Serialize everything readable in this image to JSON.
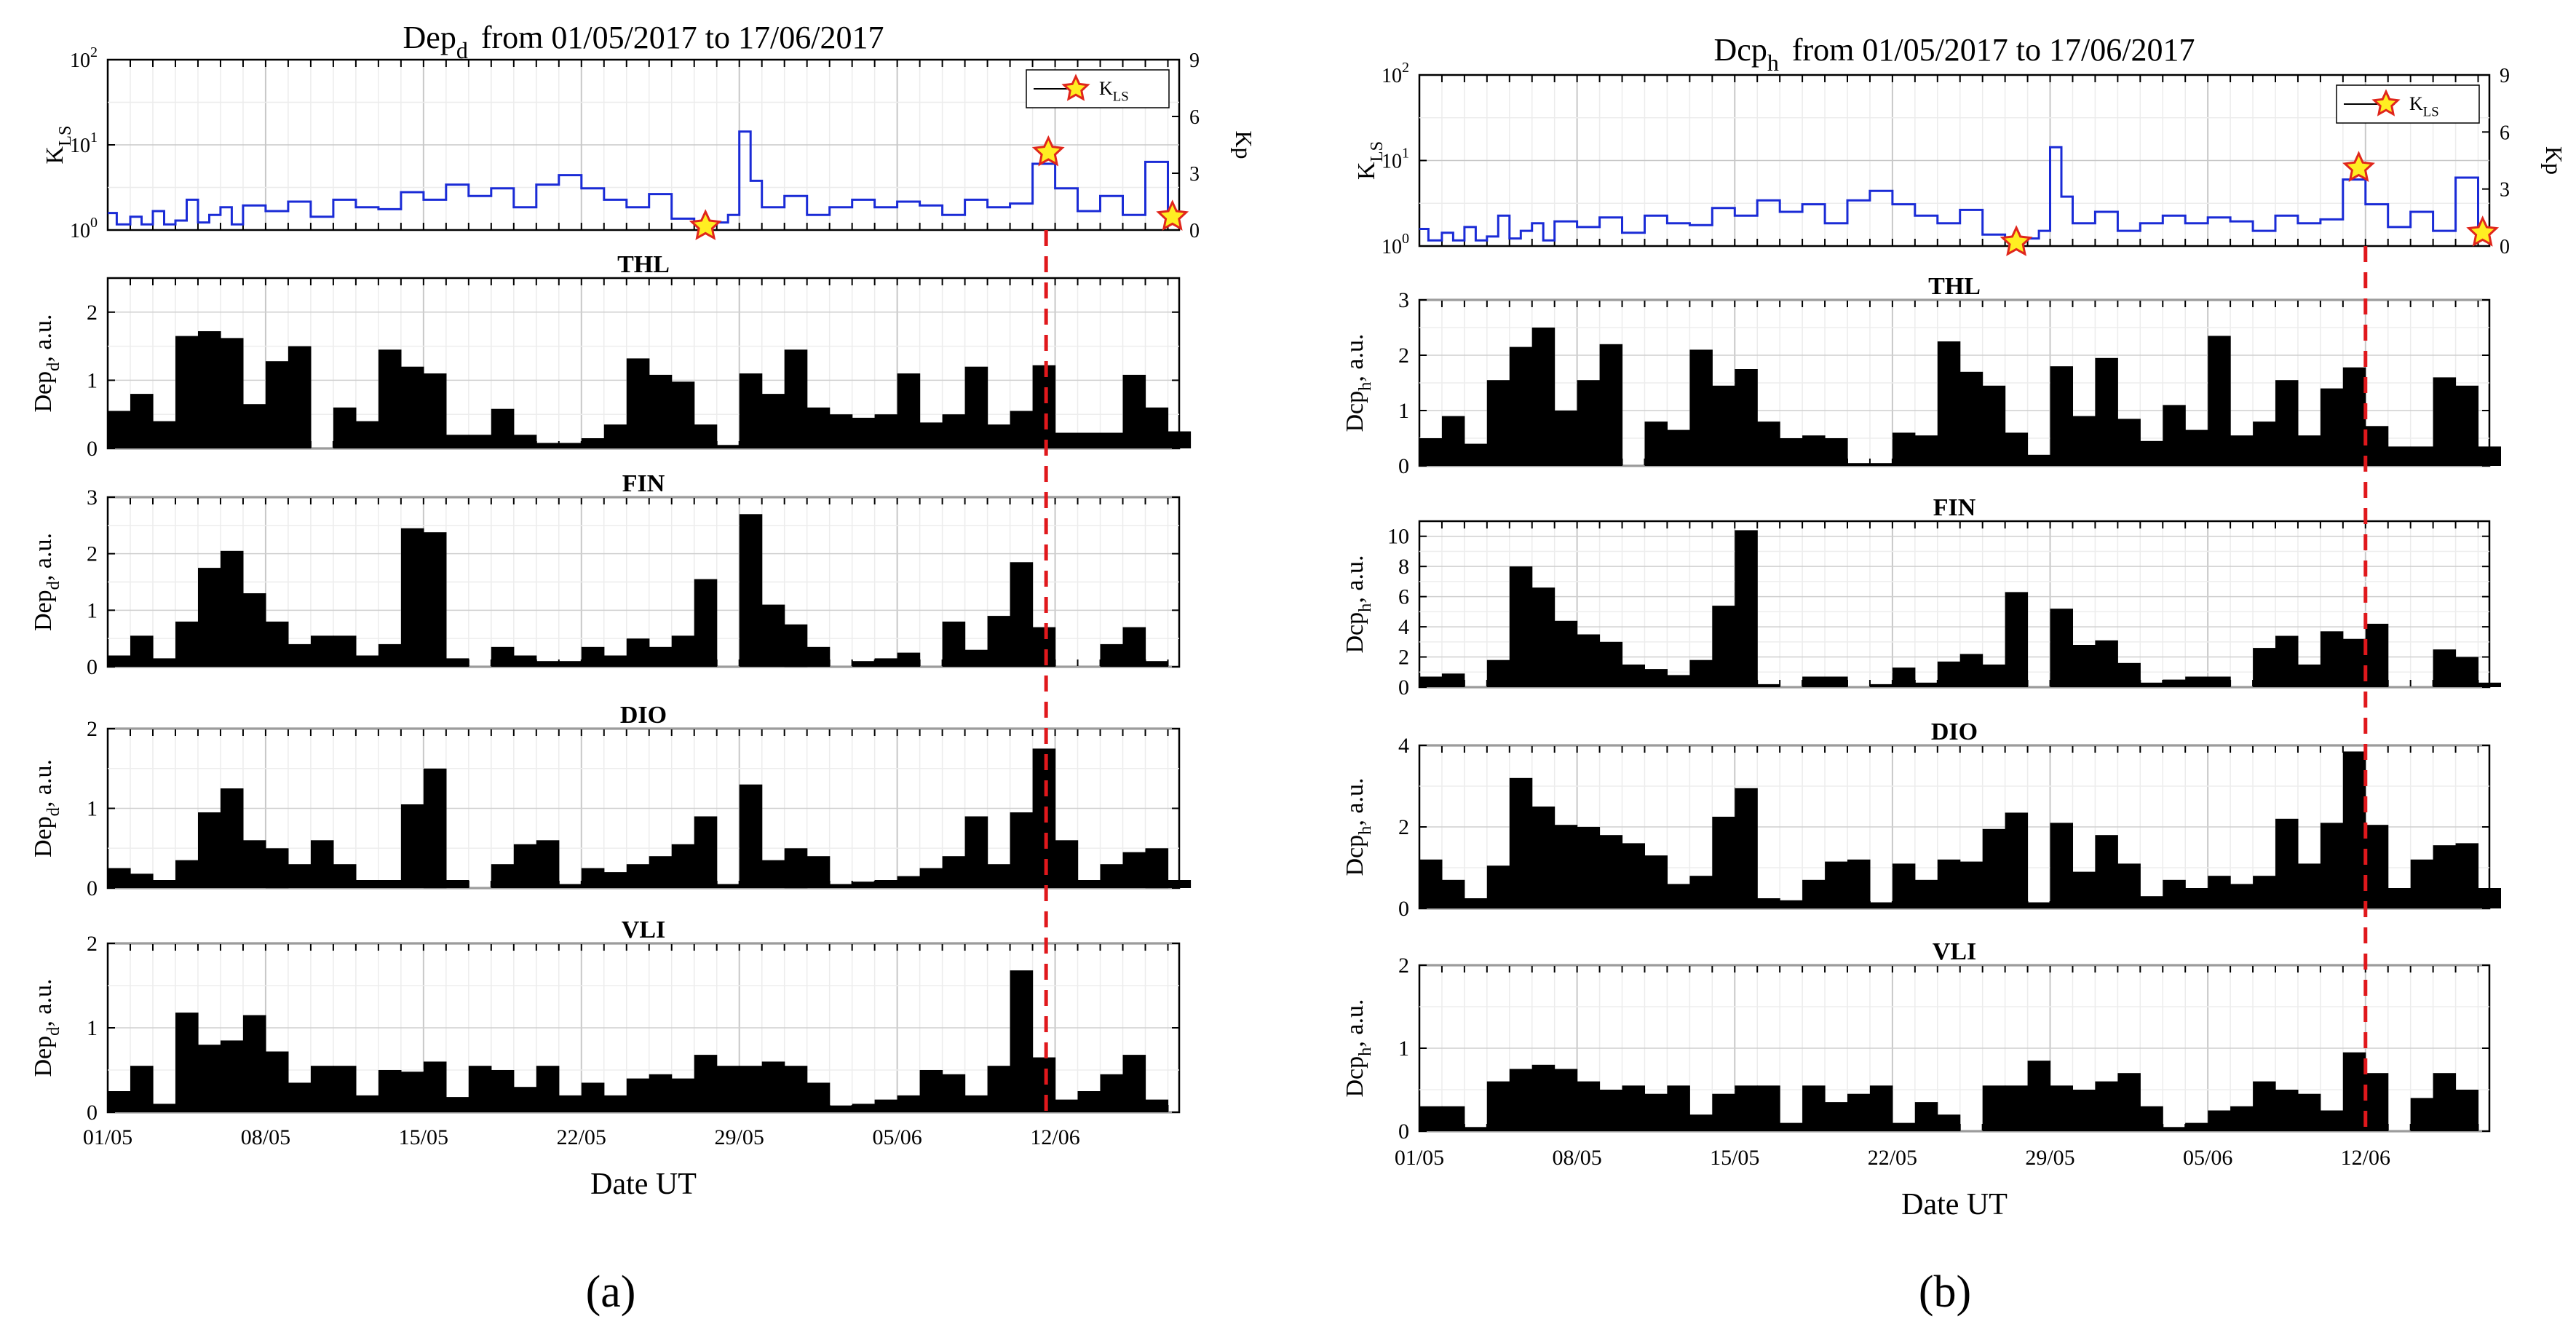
{
  "panel_a_label": "(a)",
  "panel_b_label": "(b)",
  "chart_data": [
    {
      "type": "bar",
      "figure": "a",
      "title_main": "Dep",
      "title_sub": "d",
      "title_rest": "from  01/05/2017  to  17/06/2017",
      "xlabel": "Date UT",
      "x_ticks": [
        "01/05",
        "08/05",
        "15/05",
        "22/05",
        "29/05",
        "05/06",
        "12/06"
      ],
      "x_range_days": [
        0,
        47.5
      ],
      "event_line_day": 41.6,
      "kp_panel": {
        "ylabel_main": "K",
        "ylabel_sub": "LS",
        "y2label": "Kp",
        "left_ticks": [
          "10",
          "10",
          "10"
        ],
        "left_exps": [
          "0",
          "1",
          "2"
        ],
        "right_ticks": [
          "0",
          "3",
          "6",
          "9"
        ],
        "legend_label_main": "K",
        "legend_label_sub": "LS",
        "series": [
          [
            0,
            0.9
          ],
          [
            0.4,
            0.3
          ],
          [
            1,
            0.7
          ],
          [
            1.5,
            0.3
          ],
          [
            2,
            1
          ],
          [
            2.5,
            0.3
          ],
          [
            3,
            0.5
          ],
          [
            3.5,
            1.6
          ],
          [
            4,
            0.4
          ],
          [
            4.5,
            0.8
          ],
          [
            5,
            1.2
          ],
          [
            5.5,
            0.3
          ],
          [
            6,
            1.3
          ],
          [
            7,
            1
          ],
          [
            8,
            1.5
          ],
          [
            9,
            0.7
          ],
          [
            10,
            1.6
          ],
          [
            11,
            1.2
          ],
          [
            12,
            1.1
          ],
          [
            13,
            2
          ],
          [
            14,
            1.6
          ],
          [
            15,
            2.4
          ],
          [
            16,
            1.8
          ],
          [
            17,
            2.2
          ],
          [
            18,
            1.2
          ],
          [
            19,
            2.4
          ],
          [
            20,
            2.9
          ],
          [
            21,
            2.2
          ],
          [
            22,
            1.6
          ],
          [
            23,
            1.2
          ],
          [
            24,
            1.9
          ],
          [
            25,
            0.6
          ],
          [
            26,
            0.4
          ],
          [
            26.5,
            0.3
          ],
          [
            27,
            0.4
          ],
          [
            27.5,
            0.8
          ],
          [
            28,
            5.2
          ],
          [
            28.5,
            2.6
          ],
          [
            29,
            1.2
          ],
          [
            30,
            1.8
          ],
          [
            31,
            0.8
          ],
          [
            32,
            1.2
          ],
          [
            33,
            1.6
          ],
          [
            34,
            1.2
          ],
          [
            35,
            1.5
          ],
          [
            36,
            1.3
          ],
          [
            37,
            0.8
          ],
          [
            38,
            1.6
          ],
          [
            39,
            1.2
          ],
          [
            40,
            1.4
          ],
          [
            41,
            3.5
          ],
          [
            42,
            2.2
          ],
          [
            43,
            1
          ],
          [
            44,
            1.8
          ],
          [
            45,
            0.8
          ],
          [
            46,
            3.6
          ],
          [
            47,
            0.4
          ]
        ],
        "stars": [
          [
            26.5,
            0.2
          ],
          [
            41.7,
            4.1
          ],
          [
            47.2,
            0.7
          ]
        ]
      },
      "stations": [
        {
          "name": "THL",
          "ylabel_main": "Dep",
          "ylabel_sub": "d",
          "ylabel_rest": ", a.u.",
          "ylim": [
            0,
            2.5
          ],
          "yticks": [
            "0",
            "1",
            "2"
          ],
          "tick_values": [
            0,
            1,
            2
          ],
          "values": [
            0.55,
            0.8,
            0.4,
            1.65,
            1.72,
            1.62,
            0.65,
            1.28,
            1.5,
            0,
            0.6,
            0.4,
            1.45,
            1.2,
            1.1,
            0.2,
            0.2,
            0.58,
            0.2,
            0.08,
            0.08,
            0.15,
            0.35,
            1.32,
            1.08,
            0.98,
            0.35,
            0.05,
            1.1,
            0.8,
            1.45,
            0.6,
            0.5,
            0.45,
            0.5,
            1.1,
            0.38,
            0.5,
            1.2,
            0.35,
            0.55,
            1.22,
            0.23,
            0.23,
            0.23,
            1.08,
            0.6,
            0.25
          ]
        },
        {
          "name": "FIN",
          "ylabel_main": "Dep",
          "ylabel_sub": "d",
          "ylabel_rest": ", a.u.",
          "ylim": [
            0,
            3
          ],
          "yticks": [
            "0",
            "1",
            "2",
            "3"
          ],
          "tick_values": [
            0,
            1,
            2,
            3
          ],
          "values": [
            0.2,
            0.55,
            0.15,
            0.8,
            1.75,
            2.05,
            1.3,
            0.8,
            0.4,
            0.55,
            0.55,
            0.2,
            0.4,
            2.45,
            2.38,
            0.15,
            0,
            0.35,
            0.2,
            0.1,
            0.1,
            0.35,
            0.2,
            0.5,
            0.35,
            0.55,
            1.55,
            0,
            2.7,
            1.1,
            0.75,
            0.35,
            0,
            0.1,
            0.15,
            0.25,
            0,
            0.8,
            0.3,
            0.9,
            1.85,
            0.7,
            0,
            0,
            0.4,
            0.7,
            0.1,
            0
          ]
        },
        {
          "name": "DIO",
          "ylabel_main": "Dep",
          "ylabel_sub": "d",
          "ylabel_rest": ", a.u.",
          "ylim": [
            0,
            2
          ],
          "yticks": [
            "0",
            "1",
            "2"
          ],
          "tick_values": [
            0,
            1,
            2
          ],
          "values": [
            0.25,
            0.18,
            0.1,
            0.35,
            0.95,
            1.25,
            0.6,
            0.5,
            0.3,
            0.6,
            0.3,
            0.1,
            0.1,
            1.05,
            1.5,
            0.1,
            0,
            0.3,
            0.55,
            0.6,
            0.05,
            0.25,
            0.2,
            0.3,
            0.4,
            0.55,
            0.9,
            0.05,
            1.3,
            0.35,
            0.5,
            0.4,
            0.05,
            0.08,
            0.1,
            0.15,
            0.25,
            0.4,
            0.9,
            0.3,
            0.95,
            1.75,
            0.6,
            0.1,
            0.3,
            0.45,
            0.5,
            0.1
          ]
        },
        {
          "name": "VLI",
          "ylabel_main": "Dep",
          "ylabel_sub": "d",
          "ylabel_rest": ", a.u.",
          "ylim": [
            0,
            2
          ],
          "yticks": [
            "0",
            "1",
            "2"
          ],
          "tick_values": [
            0,
            1,
            2
          ],
          "values": [
            0.25,
            0.55,
            0.1,
            1.18,
            0.8,
            0.85,
            1.15,
            0.72,
            0.35,
            0.55,
            0.55,
            0.2,
            0.5,
            0.48,
            0.6,
            0.18,
            0.55,
            0.5,
            0.3,
            0.55,
            0.2,
            0.35,
            0.2,
            0.4,
            0.45,
            0.4,
            0.68,
            0.55,
            0.55,
            0.6,
            0.55,
            0.35,
            0.08,
            0.1,
            0.15,
            0.2,
            0.5,
            0.45,
            0.2,
            0.55,
            1.68,
            0.65,
            0.15,
            0.25,
            0.45,
            0.68,
            0.15,
            0
          ]
        }
      ]
    },
    {
      "type": "bar",
      "figure": "b",
      "title_main": "Dcp",
      "title_sub": "h",
      "title_rest": "from  01/05/2017  to  17/06/2017",
      "xlabel": "Date UT",
      "x_ticks": [
        "01/05",
        "08/05",
        "15/05",
        "22/05",
        "29/05",
        "05/06",
        "12/06"
      ],
      "x_range_days": [
        0,
        47.5
      ],
      "event_line_day": 42,
      "kp_panel": {
        "ylabel_main": "K",
        "ylabel_sub": "LS",
        "y2label": "Kp",
        "left_ticks": [
          "10",
          "10",
          "10"
        ],
        "left_exps": [
          "0",
          "1",
          "2"
        ],
        "right_ticks": [
          "0",
          "3",
          "6",
          "9"
        ],
        "legend_label_main": "K",
        "legend_label_sub": "LS",
        "series": [
          [
            0,
            0.9
          ],
          [
            0.4,
            0.3
          ],
          [
            1,
            0.7
          ],
          [
            1.5,
            0.3
          ],
          [
            2,
            1
          ],
          [
            2.5,
            0.3
          ],
          [
            3,
            0.5
          ],
          [
            3.5,
            1.6
          ],
          [
            4,
            0.4
          ],
          [
            4.5,
            0.8
          ],
          [
            5,
            1.2
          ],
          [
            5.5,
            0.3
          ],
          [
            6,
            1.3
          ],
          [
            7,
            1
          ],
          [
            8,
            1.5
          ],
          [
            9,
            0.7
          ],
          [
            10,
            1.6
          ],
          [
            11,
            1.2
          ],
          [
            12,
            1.1
          ],
          [
            13,
            2
          ],
          [
            14,
            1.6
          ],
          [
            15,
            2.4
          ],
          [
            16,
            1.8
          ],
          [
            17,
            2.2
          ],
          [
            18,
            1.2
          ],
          [
            19,
            2.4
          ],
          [
            20,
            2.9
          ],
          [
            21,
            2.2
          ],
          [
            22,
            1.6
          ],
          [
            23,
            1.2
          ],
          [
            24,
            1.9
          ],
          [
            25,
            0.6
          ],
          [
            26,
            0.4
          ],
          [
            26.5,
            0.3
          ],
          [
            27,
            0.4
          ],
          [
            27.5,
            0.8
          ],
          [
            28,
            5.2
          ],
          [
            28.5,
            2.6
          ],
          [
            29,
            1.2
          ],
          [
            30,
            1.8
          ],
          [
            31,
            0.8
          ],
          [
            32,
            1.2
          ],
          [
            33,
            1.6
          ],
          [
            34,
            1.2
          ],
          [
            35,
            1.5
          ],
          [
            36,
            1.3
          ],
          [
            37,
            0.8
          ],
          [
            38,
            1.6
          ],
          [
            39,
            1.2
          ],
          [
            40,
            1.4
          ],
          [
            41,
            3.5
          ],
          [
            42,
            2.2
          ],
          [
            43,
            1
          ],
          [
            44,
            1.8
          ],
          [
            45,
            0.8
          ],
          [
            46,
            3.6
          ],
          [
            47,
            0.4
          ]
        ],
        "stars": [
          [
            26.5,
            0.2
          ],
          [
            41.7,
            4.1
          ],
          [
            47.2,
            0.7
          ]
        ]
      },
      "stations": [
        {
          "name": "THL",
          "ylabel_main": "Dcp",
          "ylabel_sub": "h",
          "ylabel_rest": ", a.u.",
          "ylim": [
            0,
            3
          ],
          "yticks": [
            "0",
            "1",
            "2",
            "3"
          ],
          "tick_values": [
            0,
            1,
            2,
            3
          ],
          "values": [
            0.5,
            0.9,
            0.4,
            1.55,
            2.15,
            2.5,
            1.0,
            1.55,
            2.2,
            0,
            0.8,
            0.65,
            2.1,
            1.45,
            1.75,
            0.8,
            0.5,
            0.55,
            0.5,
            0.05,
            0.05,
            0.6,
            0.55,
            2.25,
            1.7,
            1.45,
            0.6,
            0.2,
            1.8,
            0.9,
            1.95,
            0.85,
            0.45,
            1.1,
            0.65,
            2.35,
            0.55,
            0.8,
            1.55,
            0.55,
            1.4,
            1.78,
            0.72,
            0.35,
            0.35,
            1.6,
            1.45,
            0.35
          ]
        },
        {
          "name": "FIN",
          "ylabel_main": "Dcp",
          "ylabel_sub": "h",
          "ylabel_rest": ", a.u.",
          "ylim": [
            0,
            11
          ],
          "yticks": [
            "0",
            "2",
            "4",
            "6",
            "8",
            "10"
          ],
          "tick_values": [
            0,
            2,
            4,
            6,
            8,
            10
          ],
          "values": [
            0.7,
            0.9,
            0,
            1.8,
            8,
            6.6,
            4.4,
            3.5,
            3,
            1.5,
            1.2,
            0.8,
            1.8,
            5.4,
            10.4,
            0.2,
            0,
            0.7,
            0.7,
            0,
            0.2,
            1.3,
            0.3,
            1.7,
            2.2,
            1.5,
            6.3,
            0,
            5.2,
            2.8,
            3.1,
            1.6,
            0.3,
            0.5,
            0.7,
            0.7,
            0,
            2.6,
            3.4,
            1.5,
            3.7,
            3.2,
            4.2,
            0,
            0,
            2.5,
            2,
            0.3
          ]
        },
        {
          "name": "DIO",
          "ylabel_main": "Dcp",
          "ylabel_sub": "h",
          "ylabel_rest": ", a.u.",
          "ylim": [
            0,
            4
          ],
          "yticks": [
            "0",
            "2",
            "4"
          ],
          "tick_values": [
            0,
            2,
            4
          ],
          "values": [
            1.2,
            0.7,
            0.25,
            1.05,
            3.2,
            2.5,
            2.05,
            2,
            1.8,
            1.6,
            1.3,
            0.6,
            0.8,
            2.25,
            2.95,
            0.25,
            0.2,
            0.7,
            1.15,
            1.2,
            0.15,
            1.1,
            0.7,
            1.2,
            1.15,
            1.95,
            2.35,
            0.15,
            2.1,
            0.9,
            1.8,
            1.1,
            0.3,
            0.7,
            0.5,
            0.8,
            0.6,
            0.8,
            2.2,
            1.1,
            2.1,
            3.85,
            2.05,
            0.5,
            1.2,
            1.55,
            1.6,
            0.5
          ]
        },
        {
          "name": "VLI",
          "ylabel_main": "Dcp",
          "ylabel_sub": "h",
          "ylabel_rest": ", a.u.",
          "ylim": [
            0,
            2
          ],
          "yticks": [
            "0",
            "1",
            "2"
          ],
          "tick_values": [
            0,
            1,
            2
          ],
          "values": [
            0.3,
            0.3,
            0.05,
            0.6,
            0.75,
            0.8,
            0.75,
            0.6,
            0.5,
            0.55,
            0.45,
            0.55,
            0.2,
            0.45,
            0.55,
            0.55,
            0.1,
            0.55,
            0.35,
            0.45,
            0.55,
            0.1,
            0.35,
            0.2,
            0,
            0.55,
            0.55,
            0.85,
            0.55,
            0.5,
            0.6,
            0.7,
            0.3,
            0.05,
            0.1,
            0.25,
            0.3,
            0.6,
            0.5,
            0.45,
            0.25,
            0.95,
            0.7,
            0,
            0.4,
            0.7,
            0.5,
            0
          ]
        }
      ]
    }
  ]
}
